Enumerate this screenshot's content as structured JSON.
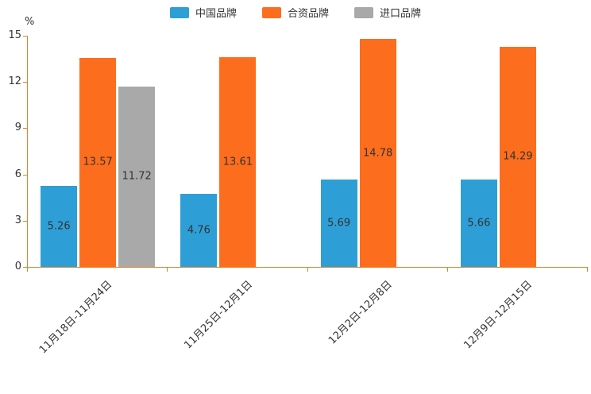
{
  "chart_data": {
    "type": "bar",
    "title": "",
    "xlabel": "",
    "ylabel": "%",
    "ylim": [
      0,
      15
    ],
    "yticks": [
      0,
      3,
      6,
      9,
      12,
      15
    ],
    "grid": false,
    "legend_position": "top",
    "axis_color": "#e0822c",
    "label_color": "#333333",
    "categories": [
      "11月18日-11月24日",
      "11月25日-12月1日",
      "12月2日-12月8日",
      "12月9日-12月15日"
    ],
    "series": [
      {
        "name": "中国品牌",
        "color": "#2e9fd6",
        "values": [
          5.26,
          4.76,
          5.69,
          5.66
        ]
      },
      {
        "name": "合资品牌",
        "color": "#fd6d1e",
        "values": [
          13.57,
          13.61,
          14.78,
          14.29
        ]
      },
      {
        "name": "进口品牌",
        "color": "#a9a9a9",
        "values": [
          11.72,
          null,
          null,
          null
        ]
      }
    ]
  }
}
